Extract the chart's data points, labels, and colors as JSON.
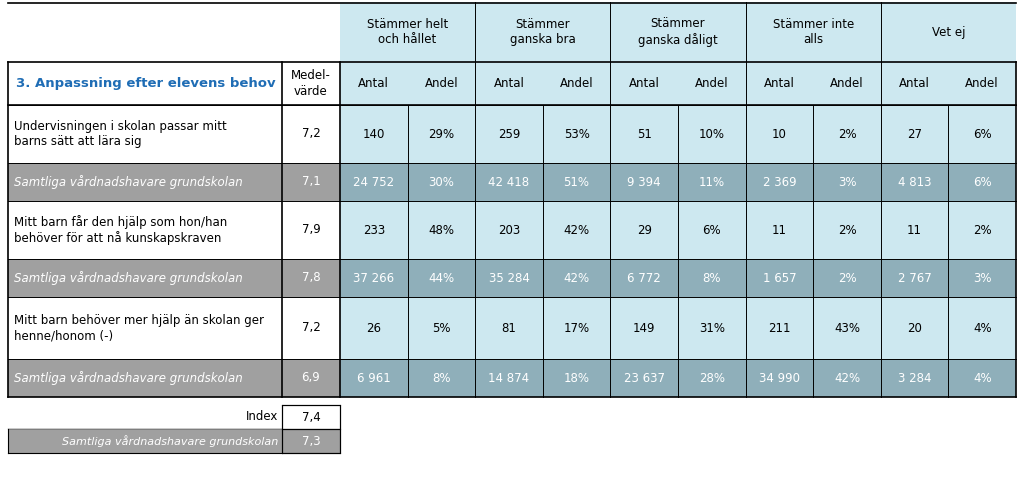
{
  "title": "3. Anpassning efter elevens behov",
  "group_labels": [
    "Stämmer helt\noch hållet",
    "Stämmer\nganska bra",
    "Stämmer\nganska dåligt",
    "Stämmer inte\nalls",
    "Vet ej"
  ],
  "subheader_col0": "Medel-\nvärde",
  "subheader_cols": [
    "Antal",
    "Andel",
    "Antal",
    "Andel",
    "Antal",
    "Andel",
    "Antal",
    "Andel",
    "Antal",
    "Andel"
  ],
  "rows": [
    {
      "label": "Undervisningen i skolan passar mitt\nbarns sätt att lära sig",
      "is_gray": false,
      "values": [
        "7,2",
        "140",
        "29%",
        "259",
        "53%",
        "51",
        "10%",
        "10",
        "2%",
        "27",
        "6%"
      ]
    },
    {
      "label": "Samtliga vårdnadshavare grundskolan",
      "is_gray": true,
      "values": [
        "7,1",
        "24 752",
        "30%",
        "42 418",
        "51%",
        "9 394",
        "11%",
        "2 369",
        "3%",
        "4 813",
        "6%"
      ]
    },
    {
      "label": "Mitt barn får den hjälp som hon/han\nbehöver för att nå kunskapskraven",
      "is_gray": false,
      "values": [
        "7,9",
        "233",
        "48%",
        "203",
        "42%",
        "29",
        "6%",
        "11",
        "2%",
        "11",
        "2%"
      ]
    },
    {
      "label": "Samtliga vårdnadshavare grundskolan",
      "is_gray": true,
      "values": [
        "7,8",
        "37 266",
        "44%",
        "35 284",
        "42%",
        "6 772",
        "8%",
        "1 657",
        "2%",
        "2 767",
        "3%"
      ]
    },
    {
      "label": "Mitt barn behöver mer hjälp än skolan ger\nhenne/honom (-)",
      "is_gray": false,
      "values": [
        "7,2",
        "26",
        "5%",
        "81",
        "17%",
        "149",
        "31%",
        "211",
        "43%",
        "20",
        "4%"
      ]
    },
    {
      "label": "Samtliga vårdnadshavare grundskolan",
      "is_gray": true,
      "values": [
        "6,9",
        "6 961",
        "8%",
        "14 874",
        "18%",
        "23 637",
        "28%",
        "34 990",
        "42%",
        "3 284",
        "4%"
      ]
    }
  ],
  "index_label": "Index",
  "index_value": "7,4",
  "samtliga_label": "Samtliga vårdnadshavare grundskolan",
  "samtliga_value": "7,3",
  "color_white": "#ffffff",
  "color_light_blue": "#cde8f0",
  "color_title_blue": "#1f6db5",
  "color_gray_row_bg": "#a0a0a0",
  "color_gray_row_data": "#8fafba",
  "color_border": "#000000"
}
